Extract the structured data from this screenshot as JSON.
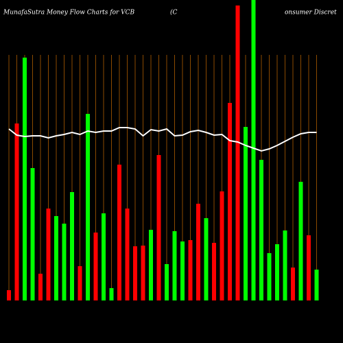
{
  "chart_data": {
    "type": "bar",
    "title_parts": [
      "MunafaSutra  Money Flow  Charts for VCB",
      "(C",
      "onsumer Discret"
    ],
    "values": [
      15,
      258,
      354,
      193,
      39,
      134,
      123,
      112,
      158,
      50,
      272,
      99,
      127,
      18,
      198,
      134,
      79,
      80,
      103,
      212,
      53,
      101,
      86,
      88,
      141,
      120,
      84,
      159,
      288,
      430,
      253,
      438,
      205,
      69,
      82,
      102,
      48,
      173,
      95,
      45
    ],
    "colors": [
      "#ff0000",
      "#ff0000",
      "#00ff00",
      "#00ff00",
      "#ff0000",
      "#ff0000",
      "#00ff00",
      "#00ff00",
      "#00ff00",
      "#ff0000",
      "#00ff00",
      "#ff0000",
      "#00ff00",
      "#00ff00",
      "#ff0000",
      "#ff0000",
      "#ff0000",
      "#ff0000",
      "#00ff00",
      "#ff0000",
      "#00ff00",
      "#00ff00",
      "#00ff00",
      "#ff0000",
      "#ff0000",
      "#00ff00",
      "#ff0000",
      "#ff0000",
      "#ff0000",
      "#ff0000",
      "#00ff00",
      "#00ff00",
      "#00ff00",
      "#00ff00",
      "#00ff00",
      "#00ff00",
      "#ff0000",
      "#00ff00",
      "#ff0000",
      "#00ff00"
    ],
    "line": {
      "color": "#ffffff",
      "values": [
        250,
        241,
        239,
        240,
        240,
        237,
        240,
        242,
        245,
        242,
        247,
        245,
        247,
        247,
        252,
        252,
        250,
        240,
        249,
        247,
        250,
        240,
        241,
        246,
        248,
        245,
        241,
        242,
        233,
        231,
        226,
        222,
        218,
        221,
        226,
        232,
        238,
        243,
        245,
        245
      ]
    },
    "ylim": [
      0,
      438
    ],
    "grid_color": "#8b4a00"
  }
}
